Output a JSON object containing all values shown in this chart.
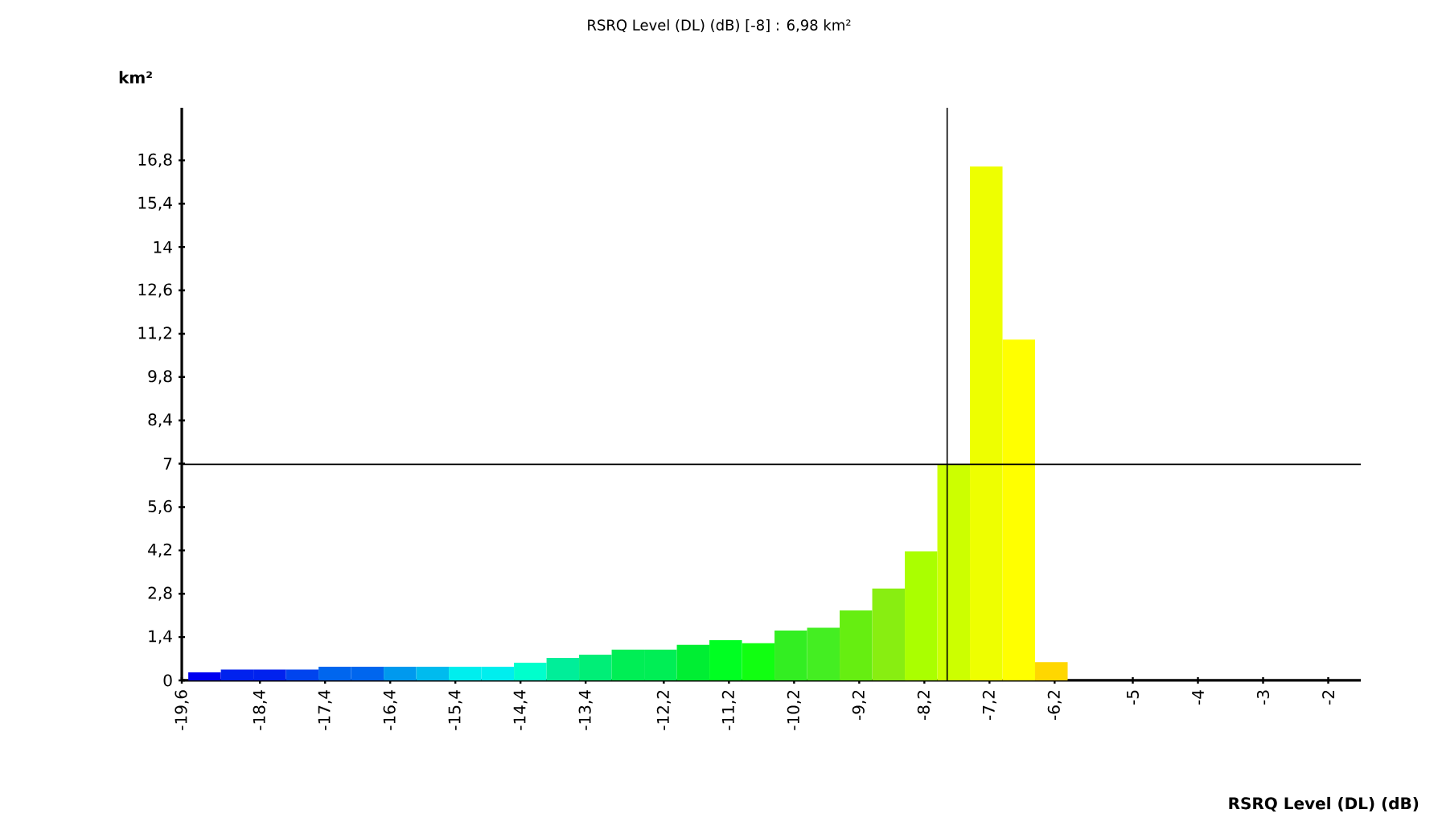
{
  "chart_data": {
    "type": "histogram",
    "title": "RSRQ Level (DL) (dB) [-8] : 6,98 km²",
    "xlabel": "RSRQ Level (DL) (dB)",
    "ylabel": "km²",
    "bins": [
      -19.5,
      -19.0,
      -18.5,
      -18.0,
      -17.5,
      -17.0,
      -16.5,
      -16.0,
      -15.5,
      -15.0,
      -14.5,
      -14.0,
      -13.5,
      -13.0,
      -12.5,
      -12.0,
      -11.5,
      -11.0,
      -10.5,
      -10.0,
      -9.5,
      -9.0,
      -8.5,
      -8.0,
      -7.5,
      -7.0,
      -6.5,
      -6.0
    ],
    "values": [
      0.26,
      0.35,
      0.35,
      0.35,
      0.44,
      0.44,
      0.44,
      0.44,
      0.44,
      0.44,
      0.57,
      0.73,
      0.83,
      0.99,
      0.99,
      1.15,
      1.3,
      1.2,
      1.61,
      1.7,
      2.26,
      2.97,
      4.17,
      6.98,
      16.6,
      11.01,
      0.59
    ],
    "colors": [
      "#0000f0",
      "#0022ee",
      "#0022ee",
      "#0044ee",
      "#0066ee",
      "#0066ee",
      "#0099ee",
      "#00bbee",
      "#00eeee",
      "#00eeee",
      "#00ffcc",
      "#00ee99",
      "#00ee77",
      "#00ee55",
      "#00ee55",
      "#00ee33",
      "#00ff22",
      "#11ff11",
      "#33ee22",
      "#44ee22",
      "#66ee11",
      "#88ee11",
      "#aaff00",
      "#ccff00",
      "#eeff00",
      "#ffff00",
      "#ffd700"
    ],
    "xlim": [
      -19.6,
      -1.5
    ],
    "xticks": [
      {
        "value": -19.6,
        "label": "-19,6"
      },
      {
        "value": -18.4,
        "label": "-18,4"
      },
      {
        "value": -17.4,
        "label": "-17,4"
      },
      {
        "value": -16.4,
        "label": "-16,4"
      },
      {
        "value": -15.4,
        "label": "-15,4"
      },
      {
        "value": -14.4,
        "label": "-14,4"
      },
      {
        "value": -13.4,
        "label": "-13,4"
      },
      {
        "value": -12.2,
        "label": "-12,2"
      },
      {
        "value": -11.2,
        "label": "-11,2"
      },
      {
        "value": -10.2,
        "label": "-10,2"
      },
      {
        "value": -9.2,
        "label": "-9,2"
      },
      {
        "value": -8.2,
        "label": "-8,2"
      },
      {
        "value": -7.2,
        "label": "-7,2"
      },
      {
        "value": -6.2,
        "label": "-6,2"
      },
      -5,
      -4,
      -3,
      -2
    ],
    "ylim": [
      0,
      18.5
    ],
    "yticks": [
      0,
      {
        "value": 1.4,
        "label": "1,4"
      },
      {
        "value": 2.8,
        "label": "2,8"
      },
      {
        "value": 4.2,
        "label": "4,2"
      },
      {
        "value": 5.6,
        "label": "5,6"
      },
      7,
      {
        "value": 8.4,
        "label": "8,4"
      },
      {
        "value": 9.8,
        "label": "9,8"
      },
      {
        "value": 11.2,
        "label": "11,2"
      },
      {
        "value": 12.6,
        "label": "12,6"
      },
      14,
      {
        "value": 15.4,
        "label": "15,4"
      },
      {
        "value": 16.8,
        "label": "16,8"
      }
    ],
    "ref_lines": [
      {
        "axis": "x",
        "value": -7.85,
        "color": "#000000"
      },
      {
        "axis": "y",
        "value": 6.98,
        "color": "#000000"
      }
    ]
  }
}
